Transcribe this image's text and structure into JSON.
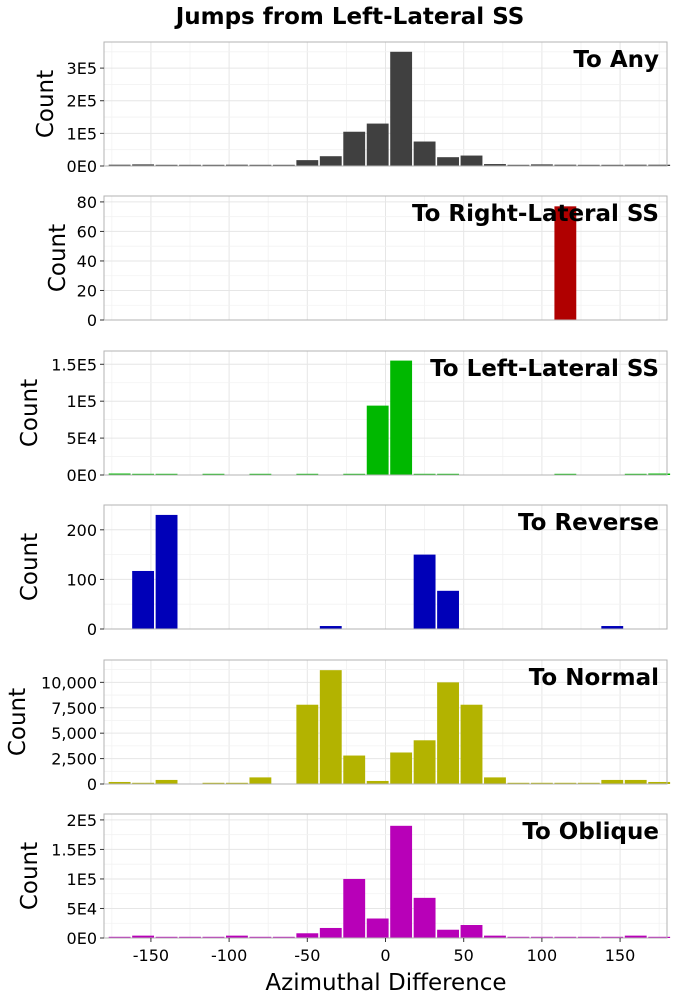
{
  "figure": {
    "title": "Jumps from Left-Lateral SS",
    "xlabel": "Azimuthal Difference",
    "xticks": [
      -150,
      -100,
      -50,
      0,
      50,
      100,
      150
    ]
  },
  "chart_data": [
    {
      "type": "bar",
      "label": "To Any",
      "color": "#404040",
      "ylabel": "Count",
      "xlim": [
        -180,
        180
      ],
      "ylim": [
        0,
        380000
      ],
      "yticks": [
        0,
        100000,
        200000,
        300000
      ],
      "ytick_labels": [
        "0E0",
        "1E5",
        "2E5",
        "3E5"
      ],
      "x": [
        -170,
        -155,
        -140,
        -125,
        -110,
        -95,
        -80,
        -65,
        -50,
        -35,
        -20,
        -5,
        10,
        25,
        40,
        55,
        70,
        85,
        100,
        115,
        130,
        145,
        160,
        175
      ],
      "values": [
        4000,
        5000,
        3000,
        1000,
        2000,
        4000,
        3000,
        3000,
        18000,
        30000,
        105000,
        130000,
        350000,
        75000,
        27000,
        32000,
        6000,
        3000,
        5000,
        4000,
        2000,
        3000,
        4000,
        4000
      ]
    },
    {
      "type": "bar",
      "label": "To Right-Lateral SS",
      "color": "#b00000",
      "ylabel": "Count",
      "xlim": [
        -180,
        180
      ],
      "ylim": [
        0,
        84
      ],
      "yticks": [
        0,
        20,
        40,
        60,
        80
      ],
      "ytick_labels": [
        "0",
        "20",
        "40",
        "60",
        "80"
      ],
      "x": [
        115
      ],
      "values": [
        77
      ]
    },
    {
      "type": "bar",
      "label": "To Left-Lateral SS",
      "color": "#00b800",
      "ylabel": "Count",
      "xlim": [
        -180,
        180
      ],
      "ylim": [
        0,
        168000
      ],
      "yticks": [
        0,
        50000,
        100000,
        150000
      ],
      "ytick_labels": [
        "0E0",
        "5E4",
        "1E5",
        "1.5E5"
      ],
      "x": [
        -170,
        -155,
        -140,
        -125,
        -110,
        -95,
        -80,
        -65,
        -50,
        -35,
        -20,
        -5,
        10,
        25,
        40,
        55,
        70,
        85,
        100,
        115,
        130,
        145,
        160,
        175
      ],
      "values": [
        2000,
        500,
        200,
        0,
        1000,
        0,
        500,
        0,
        1000,
        0,
        1500,
        94000,
        155000,
        1000,
        1000,
        0,
        0,
        0,
        0,
        1000,
        0,
        0,
        1000,
        2000
      ]
    },
    {
      "type": "bar",
      "label": "To Reverse",
      "color": "#0000b8",
      "ylabel": "Count",
      "xlim": [
        -180,
        180
      ],
      "ylim": [
        0,
        250
      ],
      "yticks": [
        0,
        100,
        200
      ],
      "ytick_labels": [
        "0",
        "100",
        "200"
      ],
      "x": [
        -155,
        -140,
        -35,
        25,
        40,
        145
      ],
      "values": [
        117,
        230,
        6,
        150,
        77,
        6
      ]
    },
    {
      "type": "bar",
      "label": "To Normal",
      "color": "#b3b300",
      "ylabel": "Count",
      "xlim": [
        -180,
        180
      ],
      "ylim": [
        0,
        12200
      ],
      "yticks": [
        0,
        2500,
        5000,
        7500,
        10000
      ],
      "ytick_labels": [
        "0",
        "2,500",
        "5,000",
        "7,500",
        "10,000"
      ],
      "x": [
        -170,
        -155,
        -140,
        -125,
        -110,
        -95,
        -80,
        -65,
        -50,
        -35,
        -20,
        -5,
        10,
        25,
        40,
        55,
        70,
        85,
        100,
        115,
        130,
        145,
        160,
        175
      ],
      "values": [
        200,
        100,
        400,
        0,
        50,
        50,
        650,
        0,
        7800,
        11200,
        2800,
        300,
        3100,
        4300,
        10000,
        7800,
        650,
        100,
        50,
        50,
        100,
        400,
        400,
        200
      ]
    },
    {
      "type": "bar",
      "label": "To Oblique",
      "color": "#b800b8",
      "ylabel": "Count",
      "xlim": [
        -180,
        180
      ],
      "ylim": [
        0,
        210000
      ],
      "yticks": [
        0,
        50000,
        100000,
        150000,
        200000
      ],
      "ytick_labels": [
        "0E0",
        "5E4",
        "1E5",
        "1.5E5",
        "2E5"
      ],
      "x": [
        -170,
        -155,
        -140,
        -125,
        -110,
        -95,
        -80,
        -65,
        -50,
        -35,
        -20,
        -5,
        10,
        25,
        40,
        55,
        70,
        85,
        100,
        115,
        130,
        145,
        160,
        175
      ],
      "values": [
        2000,
        4000,
        2000,
        500,
        2000,
        4000,
        1500,
        2000,
        8000,
        17000,
        100000,
        33000,
        190000,
        68000,
        14000,
        22000,
        4000,
        2000,
        1500,
        1000,
        1000,
        2000,
        4000,
        2000
      ]
    }
  ]
}
